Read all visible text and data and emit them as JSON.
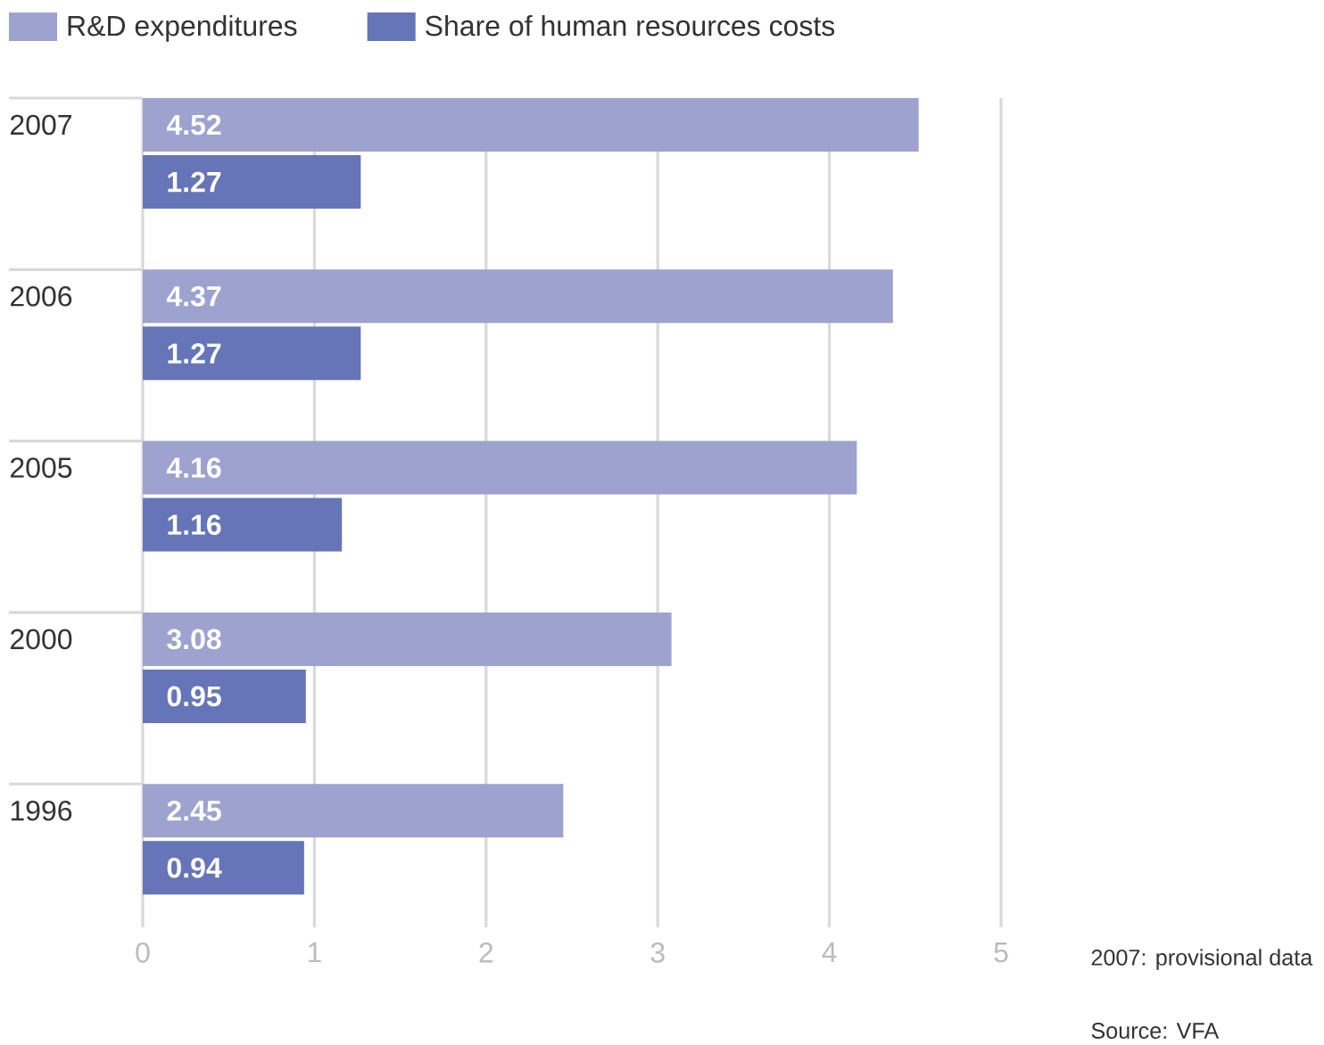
{
  "chart_data": {
    "type": "bar",
    "orientation": "horizontal",
    "categories": [
      "2007",
      "2006",
      "2005",
      "2000",
      "1996"
    ],
    "series": [
      {
        "name": "R&D expenditures",
        "color": "#9ea2cf",
        "values": [
          4.52,
          4.37,
          4.16,
          3.08,
          2.45
        ]
      },
      {
        "name": "Share of human resources costs",
        "color": "#6675b7",
        "values": [
          1.27,
          1.27,
          1.16,
          0.95,
          0.94
        ]
      }
    ],
    "xlim": [
      0,
      5
    ],
    "xticks": [
      0,
      1,
      2,
      3,
      4,
      5
    ],
    "grid": "x",
    "legend": "top left",
    "data_labels": true,
    "annotations": [
      "2007: provisional data",
      "Source: VFA"
    ]
  }
}
